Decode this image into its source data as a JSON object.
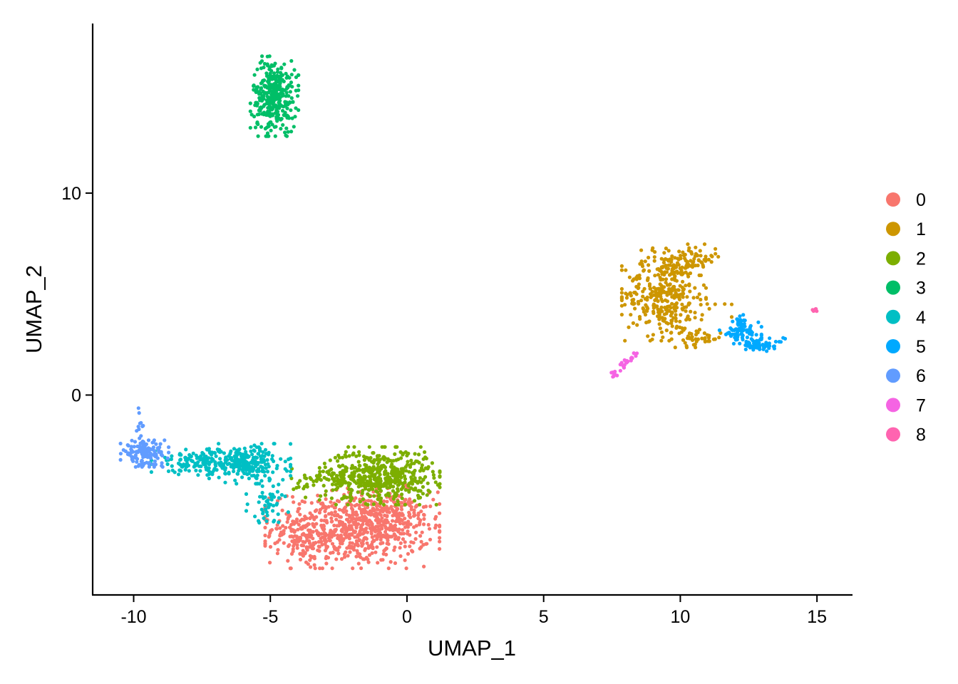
{
  "chart_data": {
    "type": "scatter",
    "title": "",
    "xlabel": "UMAP_1",
    "ylabel": "UMAP_2",
    "xlim": [
      -11.5,
      16.3
    ],
    "ylim": [
      -9.9,
      18.4
    ],
    "xticks": [
      -10,
      -5,
      0,
      5,
      10,
      15
    ],
    "xtick_labels": [
      "-10",
      "-5",
      "0",
      "5",
      "10",
      "15"
    ],
    "yticks": [
      0,
      10
    ],
    "ytick_labels": [
      "0",
      "10"
    ],
    "grid": false,
    "legend_position": "right",
    "series": [
      {
        "name": "0",
        "color": "#F8766D",
        "clusters": [
          {
            "cx": -2.0,
            "cy": -6.6,
            "sx": 1.45,
            "sy": 0.9,
            "n": 700
          },
          {
            "cx": -0.7,
            "cy": -6.0,
            "sx": 0.8,
            "sy": 0.7,
            "n": 120
          },
          {
            "cx": -3.9,
            "cy": -7.2,
            "sx": 0.4,
            "sy": 0.6,
            "n": 60
          }
        ]
      },
      {
        "name": "1",
        "color": "#CD9600",
        "clusters": [
          {
            "cx": 9.4,
            "cy": 5.0,
            "sx": 0.7,
            "sy": 1.05,
            "n": 340
          },
          {
            "cx": 10.4,
            "cy": 6.7,
            "sx": 0.45,
            "sy": 0.35,
            "n": 80
          },
          {
            "cx": 10.6,
            "cy": 2.8,
            "sx": 0.45,
            "sy": 0.2,
            "n": 40
          },
          {
            "cx": 11.0,
            "cy": 4.5,
            "sx": 0.4,
            "sy": 0.5,
            "n": 12
          }
        ]
      },
      {
        "name": "2",
        "color": "#7CAE00",
        "clusters": [
          {
            "cx": -1.0,
            "cy": -4.0,
            "sx": 1.0,
            "sy": 0.65,
            "n": 500
          },
          {
            "cx": -3.0,
            "cy": -4.3,
            "sx": 0.6,
            "sy": 0.35,
            "n": 50
          }
        ]
      },
      {
        "name": "3",
        "color": "#00BE67",
        "clusters": [
          {
            "cx": -4.85,
            "cy": 14.8,
            "sx": 0.4,
            "sy": 0.9,
            "n": 330
          }
        ]
      },
      {
        "name": "4",
        "color": "#00BFC4",
        "clusters": [
          {
            "cx": -5.8,
            "cy": -3.4,
            "sx": 0.7,
            "sy": 0.45,
            "n": 230
          },
          {
            "cx": -7.7,
            "cy": -3.3,
            "sx": 0.75,
            "sy": 0.3,
            "n": 130
          },
          {
            "cx": -5.0,
            "cy": -5.3,
            "sx": 0.4,
            "sy": 0.5,
            "n": 50
          }
        ]
      },
      {
        "name": "5",
        "color": "#00A9FF",
        "clusters": [
          {
            "cx": 12.2,
            "cy": 3.2,
            "sx": 0.35,
            "sy": 0.35,
            "n": 80
          },
          {
            "cx": 12.9,
            "cy": 2.5,
            "sx": 0.45,
            "sy": 0.15,
            "n": 60
          }
        ]
      },
      {
        "name": "6",
        "color": "#619CFF",
        "clusters": [
          {
            "cx": -9.6,
            "cy": -2.9,
            "sx": 0.4,
            "sy": 0.3,
            "n": 140
          },
          {
            "cx": -9.75,
            "cy": -1.5,
            "sx": 0.1,
            "sy": 0.45,
            "n": 12
          }
        ]
      },
      {
        "name": "7",
        "color": "#F564E3",
        "line": {
          "from": [
            7.45,
            0.9
          ],
          "to": [
            8.4,
            2.1
          ],
          "n": 30
        }
      },
      {
        "name": "8",
        "color": "#FF64B0",
        "clusters": [
          {
            "cx": 14.95,
            "cy": 4.2,
            "sx": 0.06,
            "sy": 0.05,
            "n": 7
          }
        ]
      }
    ]
  }
}
